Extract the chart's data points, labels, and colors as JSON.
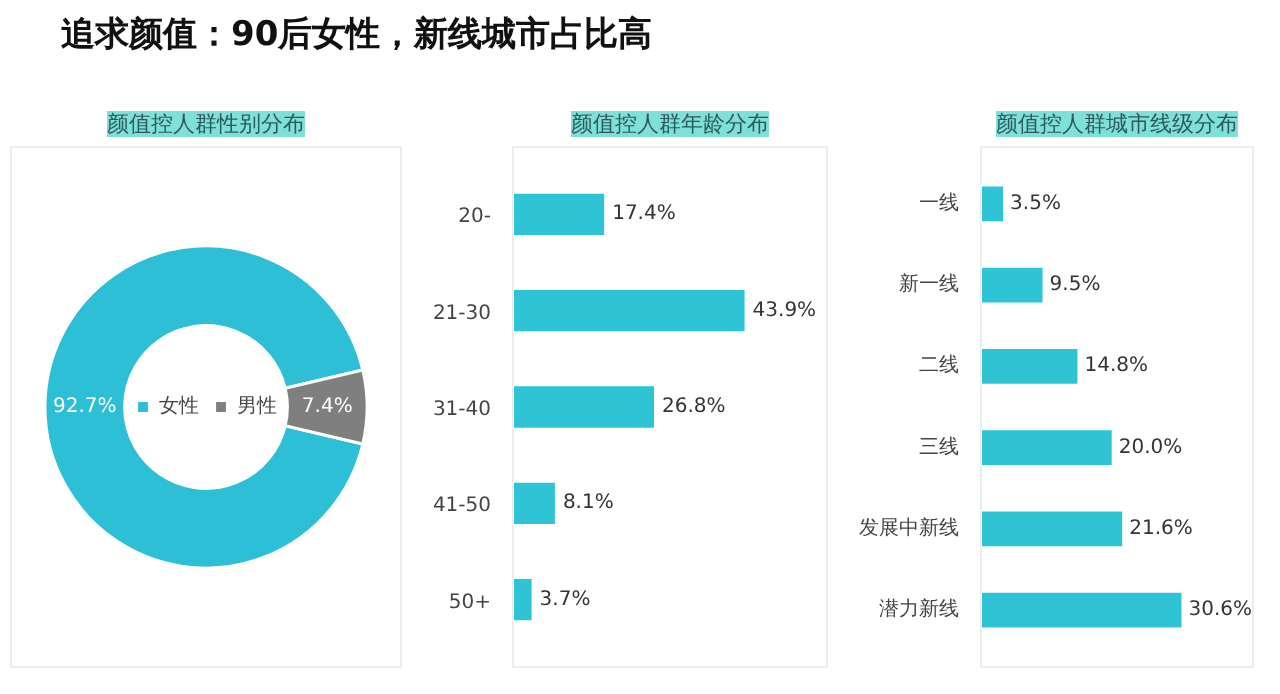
{
  "chart_data": [
    {
      "type": "other",
      "title": "追求颜值：90后女性，新线城市占比高"
    },
    {
      "type": "donut",
      "title": "颜值控人群性别分布",
      "categories": [
        "女性",
        "男性"
      ],
      "values": [
        92.7,
        7.4
      ],
      "colors": [
        "#2cbfd5",
        "#7f7f7f"
      ],
      "value_labels": [
        "92.7%",
        "7.4%"
      ],
      "legend": "center"
    },
    {
      "type": "bar",
      "orientation": "horizontal",
      "title": "颜值控人群年龄分布",
      "categories": [
        "20-",
        "21-30",
        "31-40",
        "41-50",
        "50+"
      ],
      "values": [
        17.4,
        43.9,
        26.8,
        8.1,
        3.7
      ],
      "color": "#2ec4d6",
      "value_labels": [
        "17.4%",
        "43.9%",
        "26.8%",
        "8.1%",
        "3.7%"
      ],
      "tick_labels": "y"
    },
    {
      "type": "bar",
      "orientation": "horizontal",
      "title": "颜值控人群城市线级分布",
      "categories": [
        "一线",
        "新一线",
        "二线",
        "三线",
        "发展中新线",
        "潜力新线"
      ],
      "values": [
        3.5,
        9.5,
        14.8,
        20.0,
        21.6,
        30.6
      ],
      "color": "#2ec4d6",
      "value_labels": [
        "3.5%",
        "9.5%",
        "14.8%",
        "20.0%",
        "21.6%",
        "30.6%"
      ],
      "tick_labels": "y"
    }
  ]
}
